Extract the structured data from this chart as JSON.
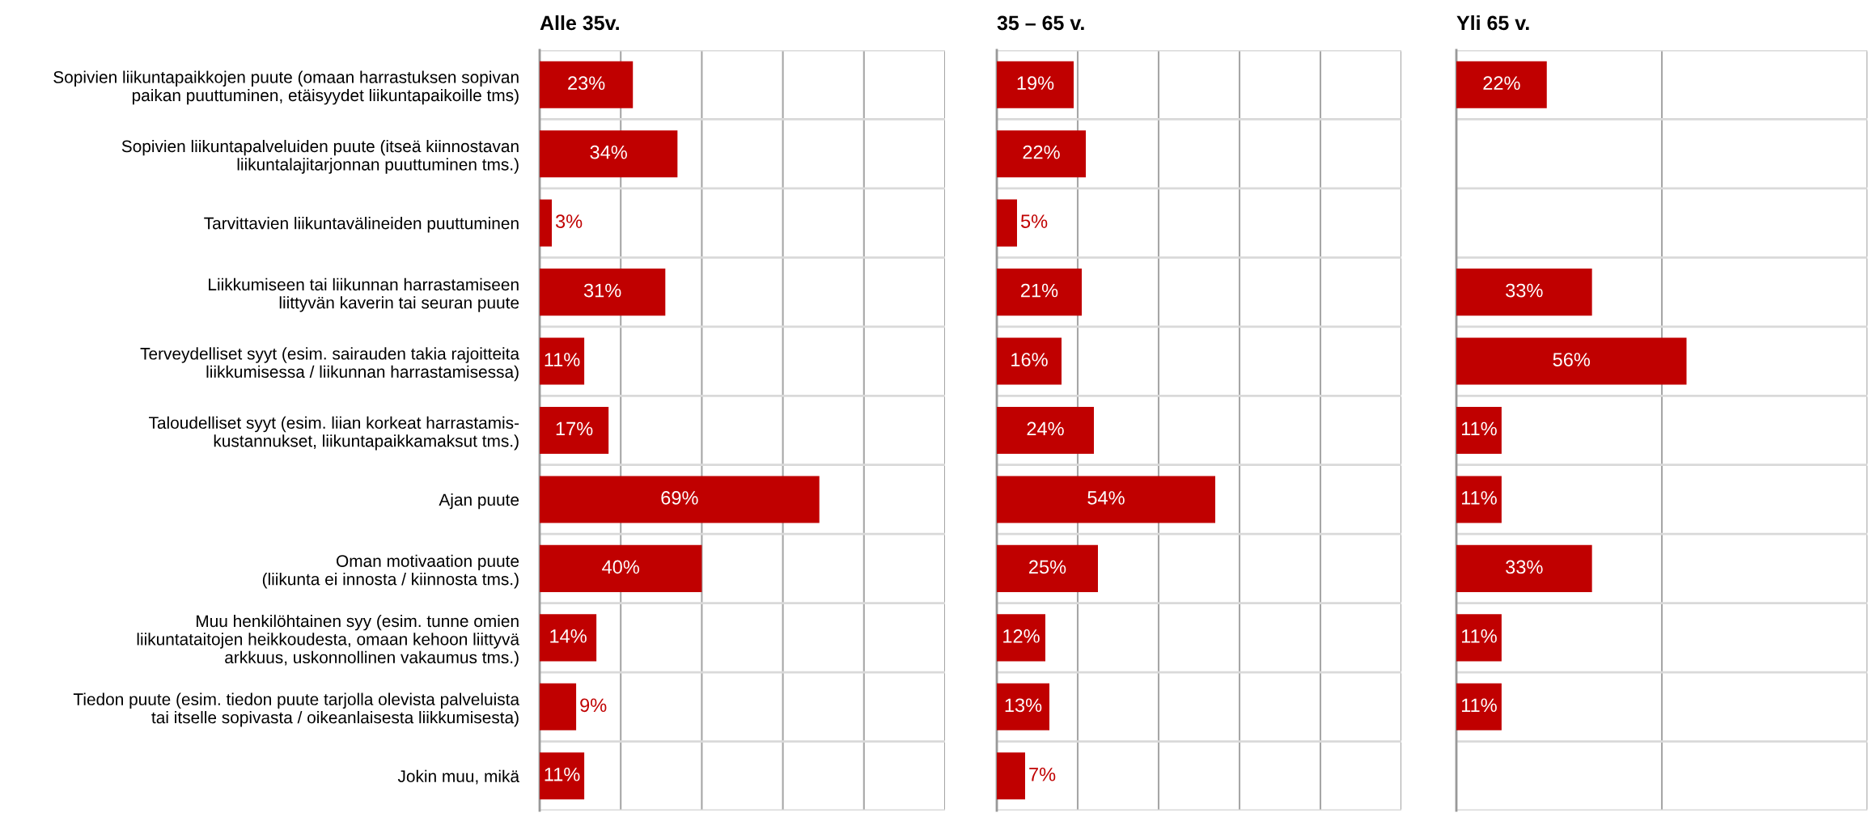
{
  "chart_data": [
    {
      "type": "bar",
      "title": "Alle 35v.",
      "orientation": "horizontal",
      "categories": [
        "Sopivien liikuntapaikkojen puute (omaan harrastuksen sopivan\npaikan puuttuminen, etäisyydet liikuntapaikoille tms)",
        "Sopivien liikuntapalveluiden puute (itseä kiinnostavan\nliikuntalajitarjonnan puuttuminen tms.)",
        "Tarvittavien liikuntavälineiden puuttuminen",
        "Liikkumiseen tai liikunnan harrastamiseen\nliittyvän kaverin tai seuran puute",
        "Terveydelliset syyt (esim. sairauden takia rajoitteita\nliikkumisessa / liikunnan harrastamisessa)",
        "Taloudelliset syyt (esim. liian korkeat harrastamis-\nkustannukset, liikuntapaikkamaksut tms.)",
        "Ajan puute",
        "Oman motivaation puute\n(liikunta ei innosta / kiinnosta tms.)",
        "Muu henkilöhtainen syy (esim. tunne omien\nliikuntataitojen heikkoudesta, omaan kehoon liittyvä\narkkuus, uskonnollinen vakaumus tms.)",
        "Tiedon puute (esim. tiedon puute tarjolla olevista palveluista\ntai itselle sopivasta / oikeanlaisesta liikkumisesta)",
        "Jokin muu, mikä"
      ],
      "values": [
        23,
        34,
        3,
        31,
        11,
        17,
        69,
        40,
        14,
        9,
        11
      ],
      "color": "#c00000",
      "xlim": [
        0,
        100
      ],
      "xticks": [
        {
          "value": 0,
          "label": null
        },
        {
          "value": 20,
          "label": null
        },
        {
          "value": 40,
          "label": null
        },
        {
          "value": 60,
          "label": null
        },
        {
          "value": 80,
          "label": null
        },
        {
          "value": 100,
          "label": null
        }
      ],
      "grid": true,
      "tick_labels": "y",
      "value_labels": [
        "23%",
        "34%",
        "3%",
        "31%",
        "11%",
        "17%",
        "69%",
        "40%",
        "14%",
        "9%",
        "11%"
      ]
    },
    {
      "type": "bar",
      "title": "35 – 65 v.",
      "orientation": "horizontal",
      "categories": [
        null,
        null,
        null,
        null,
        null,
        null,
        null,
        null,
        null,
        null,
        null
      ],
      "values": [
        19,
        22,
        5,
        21,
        16,
        24,
        54,
        25,
        12,
        13,
        7
      ],
      "color": "#c00000",
      "xlim": [
        0,
        100
      ],
      "xticks": [
        {
          "value": 0,
          "label": null
        },
        {
          "value": 20,
          "label": null
        },
        {
          "value": 40,
          "label": null
        },
        {
          "value": 60,
          "label": null
        },
        {
          "value": 80,
          "label": null
        },
        {
          "value": 100,
          "label": null
        }
      ],
      "grid": true,
      "tick_labels": false,
      "value_labels": [
        "19%",
        "22%",
        "5%",
        "21%",
        "16%",
        "24%",
        "54%",
        "25%",
        "12%",
        "13%",
        "7%"
      ]
    },
    {
      "type": "bar",
      "title": "Yli 65 v.",
      "orientation": "horizontal",
      "categories": [
        null,
        null,
        null,
        null,
        null,
        null,
        null,
        null,
        null,
        null,
        null
      ],
      "values": [
        22,
        null,
        null,
        33,
        56,
        11,
        11,
        33,
        11,
        11,
        null
      ],
      "color": "#c00000",
      "xlim": [
        0,
        100
      ],
      "xticks": [
        {
          "value": 0,
          "label": null
        },
        {
          "value": 100,
          "label": null
        }
      ],
      "ref_lines": [
        {
          "axis": "x",
          "value": 50,
          "label": null,
          "color": "#a6a6a6"
        }
      ],
      "grid": true,
      "tick_labels": false,
      "value_labels": [
        "22%",
        null,
        null,
        "33%",
        "56%",
        "11%",
        "11%",
        "33%",
        "11%",
        "11%",
        null
      ]
    }
  ]
}
